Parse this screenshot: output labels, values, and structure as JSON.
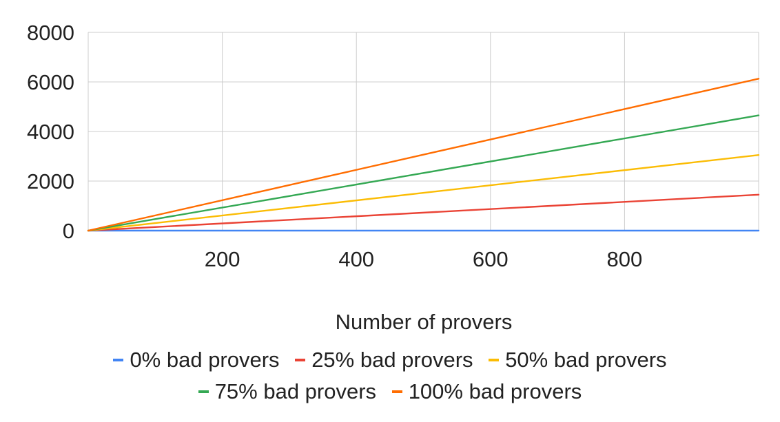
{
  "chart_data": {
    "type": "line",
    "title": "",
    "xlabel": "Number of provers",
    "ylabel": "",
    "xlim": [
      0,
      1000
    ],
    "ylim": [
      0,
      8000
    ],
    "x_ticks": [
      200,
      400,
      600,
      800
    ],
    "y_ticks": [
      0,
      2000,
      4000,
      6000,
      8000
    ],
    "grid": true,
    "legend_position": "bottom",
    "x": [
      0,
      1000
    ],
    "series": [
      {
        "name": "0% bad provers",
        "color": "#4285f4",
        "values": [
          0,
          0
        ]
      },
      {
        "name": "25% bad provers",
        "color": "#ea4335",
        "values": [
          0,
          1450
        ]
      },
      {
        "name": "50% bad provers",
        "color": "#fbbc04",
        "values": [
          0,
          3050
        ]
      },
      {
        "name": "75% bad provers",
        "color": "#34a853",
        "values": [
          0,
          4650
        ]
      },
      {
        "name": "100% bad provers",
        "color": "#ff6d01",
        "values": [
          0,
          6130
        ]
      }
    ]
  }
}
